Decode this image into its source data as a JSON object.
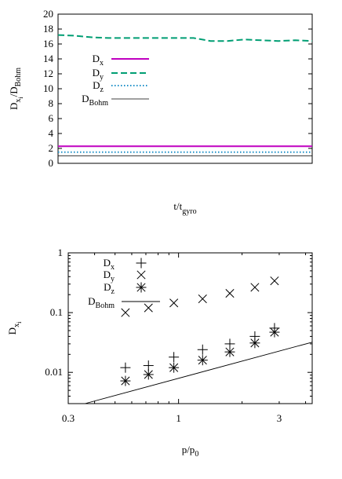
{
  "chart_data": [
    {
      "type": "line",
      "xlabel": "t/t",
      "xlabel_sub": "gyro",
      "ylabel": "D",
      "ylabel_sub": "x",
      "ylabel_subsub": "i",
      "ylabel_rest": "/D",
      "ylabel_rest_sub": "Bohm",
      "ylim": [
        0,
        20
      ],
      "yticks": [
        "0",
        "2",
        "4",
        "6",
        "8",
        "10",
        "12",
        "14",
        "16",
        "18",
        "20"
      ],
      "x_tick_labels_visible": false,
      "grid": false,
      "legend_position": "left, inside",
      "series": [
        {
          "name": "D",
          "sub": "x",
          "color": "#c000c0",
          "style": "solid",
          "values": [
            2.3,
            2.3,
            2.3,
            2.3,
            2.3,
            2.3,
            2.3,
            2.3,
            2.3,
            2.3,
            2.3,
            2.3,
            2.3,
            2.3,
            2.3,
            2.3
          ]
        },
        {
          "name": "D",
          "sub": "y",
          "color": "#009e73",
          "style": "dashed",
          "values": [
            17.2,
            17.1,
            16.9,
            16.8,
            16.8,
            16.8,
            16.8,
            16.8,
            16.8,
            16.4,
            16.4,
            16.6,
            16.5,
            16.4,
            16.5,
            16.4
          ]
        },
        {
          "name": "D",
          "sub": "z",
          "color": "#1e90c8",
          "style": "dotted",
          "values": [
            1.5,
            1.5,
            1.5,
            1.5,
            1.5,
            1.5,
            1.5,
            1.5,
            1.5,
            1.5,
            1.5,
            1.5,
            1.5,
            1.5,
            1.5,
            1.5
          ]
        },
        {
          "name": "D",
          "sub": "Bohm",
          "color": "#000000",
          "style": "solid",
          "values": [
            1,
            1,
            1,
            1,
            1,
            1,
            1,
            1,
            1,
            1,
            1,
            1,
            1,
            1,
            1,
            1
          ]
        }
      ]
    },
    {
      "type": "scatter",
      "xscale": "log",
      "yscale": "log",
      "xlabel": "p/p",
      "xlabel_sub": "0",
      "ylabel": "D",
      "ylabel_sub": "x",
      "ylabel_subsub": "i",
      "xlim": [
        0.3,
        4.3
      ],
      "ylim": [
        0.003,
        1
      ],
      "xticks": [
        {
          "v": 0.3,
          "t": "0.3"
        },
        {
          "v": 1,
          "t": "1"
        },
        {
          "v": 3,
          "t": "3"
        }
      ],
      "yticks": [
        {
          "v": 0.01,
          "t": "0.01"
        },
        {
          "v": 0.1,
          "t": "0.1"
        },
        {
          "v": 1,
          "t": "1"
        }
      ],
      "grid": false,
      "legend_position": "top-left",
      "series": [
        {
          "name": "D",
          "sub": "x",
          "marker": "plus",
          "x": [
            0.56,
            0.72,
            0.95,
            1.3,
            1.75,
            2.3,
            2.85
          ],
          "y": [
            0.012,
            0.013,
            0.018,
            0.024,
            0.03,
            0.04,
            0.055
          ]
        },
        {
          "name": "D",
          "sub": "y",
          "marker": "cross",
          "x": [
            0.56,
            0.72,
            0.95,
            1.3,
            1.75,
            2.3,
            2.85
          ],
          "y": [
            0.1,
            0.12,
            0.145,
            0.17,
            0.21,
            0.265,
            0.34
          ]
        },
        {
          "name": "D",
          "sub": "z",
          "marker": "star",
          "x": [
            0.56,
            0.72,
            0.95,
            1.3,
            1.75,
            2.3,
            2.85
          ],
          "y": [
            0.0072,
            0.0092,
            0.012,
            0.016,
            0.022,
            0.031,
            0.047
          ]
        },
        {
          "name": "D",
          "sub": "Bohm",
          "marker": "line",
          "x": [
            0.36,
            4.3
          ],
          "y": [
            0.003,
            0.032
          ]
        }
      ]
    }
  ]
}
